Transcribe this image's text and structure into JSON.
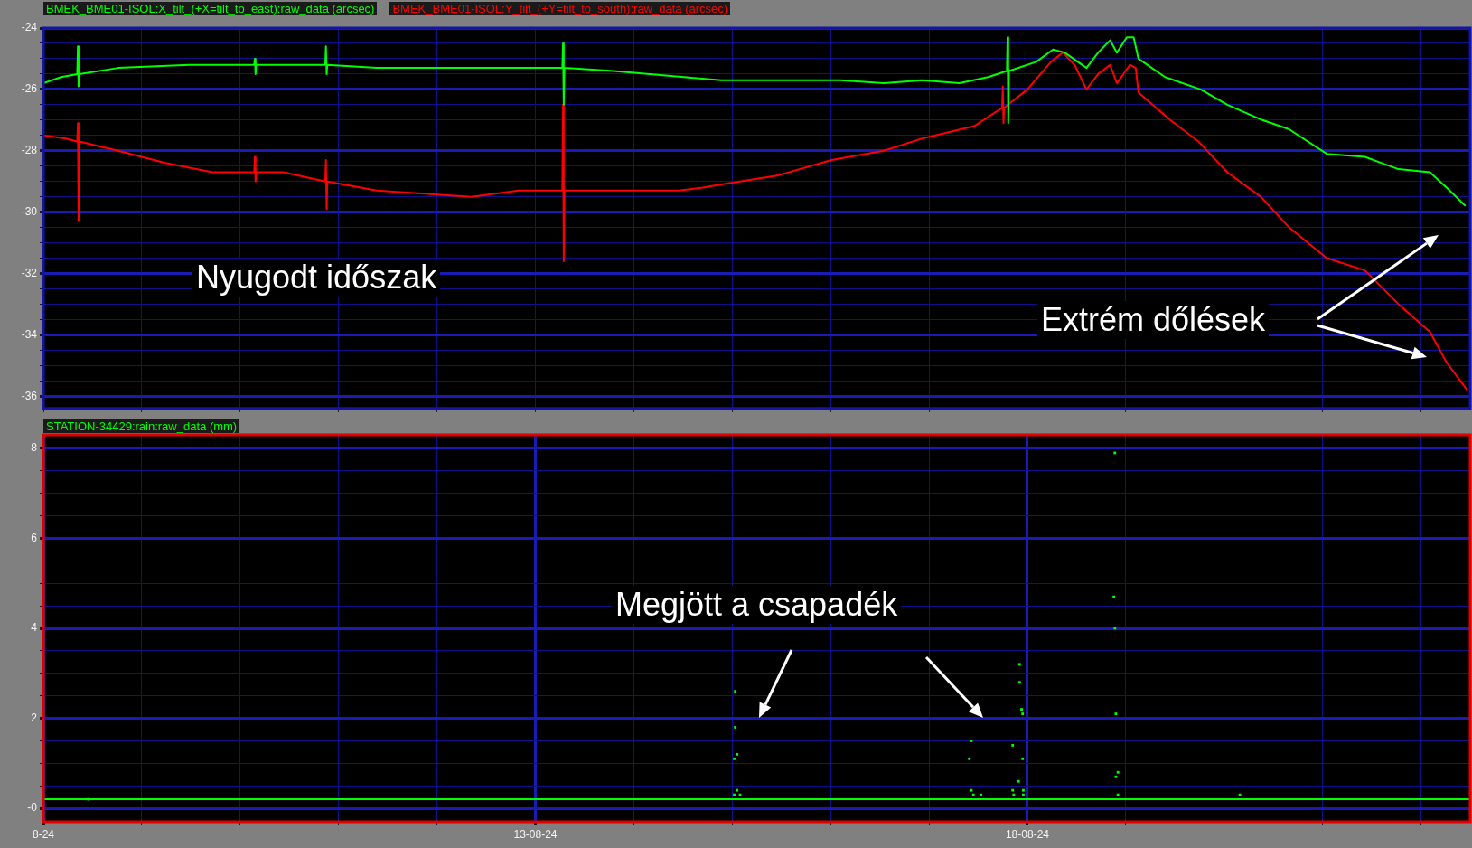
{
  "chart_data": [
    {
      "type": "line",
      "legend": "top left",
      "marker": "none",
      "line_style": "solid",
      "grid": true,
      "tick_labels": "y",
      "series": [
        {
          "name": "BMEK_BME01-ISOL:X_tilt_(+X=tilt_to_east):raw_data (arcsec)",
          "color": "#00ff00",
          "x": [
            "--08-08T00:00",
            "--08-08T04:20",
            "--08-08T08:15",
            "--08-08T08:25",
            "--08-08T08:35",
            "--08-08T08:45",
            "--08-08T18:15",
            "--08-09T11:30",
            "--08-10T03:25",
            "--08-10T03:35",
            "--08-10T03:45",
            "--08-10T03:55",
            "--08-10T20:45",
            "--08-10T20:55",
            "--08-10T21:05",
            "--08-10T21:15",
            "--08-11T09:20",
            "--08-12T08:25",
            "--08-13T06:35",
            "--08-13T06:45",
            "--08-13T06:55",
            "--08-13T07:05",
            "--08-13T19:00",
            "--08-14T12:15",
            "--08-14T21:20",
            "--08-15T11:15",
            "--08-16T02:25",
            "--08-16T13:00",
            "--08-16T22:20",
            "--08-17T07:25",
            "--08-17T14:25",
            "--08-17T19:00",
            "--08-17T19:10",
            "--08-17T19:20",
            "--08-17T19:30",
            "--08-18T02:10",
            "--08-18T06:15",
            "--08-18T09:05",
            "--08-18T14:25",
            "--08-18T17:15",
            "--08-18T20:10",
            "--08-18T21:50",
            "--08-19T00:15",
            "--08-19T01:55",
            "--08-19T03:05",
            "--08-19T09:35",
            "--08-19T18:15",
            "--08-20T00:45",
            "--08-20T09:20",
            "--08-20T15:50",
            "--08-21T01:00",
            "--08-21T10:20",
            "--08-21T18:30",
            "--08-22T02:10",
            "--08-22T06:15",
            "--08-22T10:50"
          ],
          "values": [
            -25.8,
            -25.6,
            -25.5,
            -24.6,
            -25.9,
            -25.5,
            -25.3,
            -25.2,
            -25.2,
            -25.0,
            -25.5,
            -25.2,
            -25.2,
            -24.6,
            -25.5,
            -25.2,
            -25.3,
            -25.3,
            -25.3,
            -24.5,
            -26.5,
            -25.3,
            -25.4,
            -25.6,
            -25.7,
            -25.7,
            -25.7,
            -25.8,
            -25.7,
            -25.8,
            -25.6,
            -25.4,
            -24.3,
            -27.1,
            -25.4,
            -25.1,
            -24.7,
            -24.8,
            -25.3,
            -24.8,
            -24.4,
            -24.8,
            -24.3,
            -24.3,
            -25.0,
            -25.6,
            -26.0,
            -26.5,
            -27.0,
            -27.3,
            -28.1,
            -28.2,
            -28.6,
            -28.7,
            -29.2,
            -29.8
          ]
        },
        {
          "name": "BMEK_BME01-ISOL:Y_tilt_(+Y=tilt_to_south):raw_data (arcsec)",
          "color": "#ff0000",
          "x": [
            "--08-08T00:00",
            "--08-08T05:30",
            "--08-08T08:15",
            "--08-08T08:25",
            "--08-08T08:35",
            "--08-08T08:45",
            "--08-08T18:15",
            "--08-09T05:45",
            "--08-09T17:15",
            "--08-10T03:25",
            "--08-10T03:35",
            "--08-10T03:45",
            "--08-10T03:55",
            "--08-10T10:35",
            "--08-10T20:45",
            "--08-10T20:55",
            "--08-10T21:05",
            "--08-10T21:15",
            "--08-11T09:20",
            "--08-11T20:55",
            "--08-12T08:25",
            "--08-12T19:55",
            "--08-13T06:35",
            "--08-13T06:45",
            "--08-13T06:55",
            "--08-13T07:05",
            "--08-13T19:00",
            "--08-14T11:00",
            "--08-14T16:50",
            "--08-14T21:20",
            "--08-15T11:15",
            "--08-16T00:15",
            "--08-16T13:00",
            "--08-16T22:20",
            "--08-17T11:00",
            "--08-17T17:50",
            "--08-17T18:00",
            "--08-17T18:10",
            "--08-17T18:20",
            "--08-18T00:00",
            "--08-18T05:45",
            "--08-18T08:40",
            "--08-18T11:30",
            "--08-18T14:25",
            "--08-18T17:15",
            "--08-18T20:10",
            "--08-18T21:50",
            "--08-19T01:00",
            "--08-19T02:25",
            "--08-19T03:05",
            "--08-19T10:50",
            "--08-19T17:45",
            "--08-20T00:45",
            "--08-20T08:55",
            "--08-20T15:50",
            "--08-21T01:00",
            "--08-21T10:20",
            "--08-21T18:30",
            "--08-22T02:10",
            "--08-22T06:15",
            "--08-22T11:15"
          ],
          "values": [
            -27.5,
            -27.6,
            -27.7,
            -27.1,
            -30.3,
            -27.7,
            -28.0,
            -28.4,
            -28.7,
            -28.7,
            -28.2,
            -29.0,
            -28.7,
            -28.7,
            -29.0,
            -28.3,
            -29.9,
            -29.0,
            -29.3,
            -29.4,
            -29.5,
            -29.3,
            -29.3,
            -26.5,
            -31.6,
            -29.3,
            -29.3,
            -29.3,
            -29.2,
            -29.1,
            -28.8,
            -28.3,
            -28.0,
            -27.6,
            -27.2,
            -26.6,
            -25.9,
            -27.1,
            -26.6,
            -26.0,
            -25.1,
            -24.8,
            -25.2,
            -26.0,
            -25.5,
            -25.2,
            -25.8,
            -25.2,
            -25.3,
            -26.1,
            -27.0,
            -27.7,
            -28.7,
            -29.5,
            -30.5,
            -31.5,
            -31.9,
            -33.0,
            -33.9,
            -34.9,
            -35.8
          ]
        }
      ],
      "xlim": [
        "--08-08",
        "--08-22T12:00"
      ],
      "xticks": [
        "--08-08",
        "--08-09",
        "--08-10",
        "--08-11",
        "--08-12",
        "--08-13",
        "--08-14",
        "--08-15",
        "--08-16",
        "--08-17",
        "--08-18",
        "--08-19",
        "--08-20",
        "--08-21",
        "--08-22"
      ],
      "ylim": [
        -36.4,
        -24
      ],
      "yticks": [
        -36,
        {
          "value": -35.5,
          "label": null
        },
        {
          "value": -35,
          "label": null
        },
        {
          "value": -34.5,
          "label": null
        },
        -34,
        {
          "value": -33.5,
          "label": null
        },
        {
          "value": -33,
          "label": null
        },
        {
          "value": -32.5,
          "label": null
        },
        -32,
        {
          "value": -31.5,
          "label": null
        },
        {
          "value": -31,
          "label": null
        },
        {
          "value": -30.5,
          "label": null
        },
        -30,
        {
          "value": -29.5,
          "label": null
        },
        {
          "value": -29,
          "label": null
        },
        {
          "value": -28.5,
          "label": null
        },
        -28,
        {
          "value": -27.5,
          "label": null
        },
        {
          "value": -27,
          "label": null
        },
        {
          "value": -26.5,
          "label": null
        },
        -26,
        {
          "value": -25.5,
          "label": null
        },
        {
          "value": -25,
          "label": null
        },
        {
          "value": -24.5,
          "label": null
        },
        -24
      ],
      "annotations": [
        "Nyugodt időszak",
        "Extrém dőlések"
      ]
    },
    {
      "type": "scatter",
      "legend": "top left",
      "marker": "square",
      "grid": true,
      "series": [
        {
          "name": "STATION-34429:rain:raw_data (mm)",
          "color": "#00ff00",
          "x": [
            "--08-08T11:00",
            "--08-15T00:45",
            "--08-15T00:45",
            "--08-15T01:10",
            "--08-15T00:30",
            "--08-15T01:10",
            "--08-15T00:30",
            "--08-15T01:55",
            "--08-17T10:20",
            "--08-17T09:50",
            "--08-17T10:20",
            "--08-17T10:50",
            "--08-17T12:40",
            "--08-17T22:05",
            "--08-17T22:05",
            "--08-17T22:35",
            "--08-17T22:50",
            "--08-17T20:25",
            "--08-17T22:50",
            "--08-17T21:50",
            "--08-17T20:25",
            "--08-17T23:00",
            "--08-17T20:40",
            "--08-17T23:00",
            "--08-18T21:20",
            "--08-18T21:05",
            "--08-18T21:20",
            "--08-18T21:35",
            "--08-18T22:05",
            "--08-18T21:35",
            "--08-18T22:05",
            "--08-20T03:50"
          ],
          "values": [
            0.2,
            2.6,
            1.8,
            1.2,
            1.1,
            0.4,
            0.3,
            0.3,
            1.5,
            1.1,
            0.4,
            0.3,
            0.3,
            3.2,
            2.8,
            2.2,
            2.1,
            1.4,
            1.1,
            0.6,
            0.4,
            0.4,
            0.3,
            0.3,
            7.9,
            4.7,
            4.0,
            2.1,
            0.8,
            0.7,
            0.3,
            0.3
          ]
        },
        {
          "type": "line",
          "marker": "none",
          "color": "#00ff00",
          "x": [
            "--08-08",
            "--08-22T12:00"
          ],
          "values": [
            0.2,
            0.2
          ]
        }
      ],
      "xlim": [
        "--08-08",
        "--08-22T12:00"
      ],
      "xticks": [
        {
          "value": "--08-08",
          "label": "8-24"
        },
        {
          "value": "--08-09",
          "label": null
        },
        {
          "value": "--08-10",
          "label": null
        },
        {
          "value": "--08-11",
          "label": null
        },
        {
          "value": "--08-12",
          "label": null
        },
        {
          "value": "--08-13",
          "label": "13-08-24"
        },
        {
          "value": "--08-14",
          "label": null
        },
        {
          "value": "--08-15",
          "label": null
        },
        {
          "value": "--08-16",
          "label": null
        },
        {
          "value": "--08-17",
          "label": null
        },
        {
          "value": "--08-18",
          "label": "18-08-24"
        },
        {
          "value": "--08-19",
          "label": null
        },
        {
          "value": "--08-20",
          "label": null
        },
        {
          "value": "--08-21",
          "label": null
        },
        {
          "value": "--08-22",
          "label": null
        }
      ],
      "ylim": [
        -0.3,
        8.3
      ],
      "yticks": [
        {
          "value": 0,
          "label": "-0"
        },
        {
          "value": 0.5,
          "label": null
        },
        {
          "value": 1,
          "label": null
        },
        {
          "value": 1.5,
          "label": null
        },
        2,
        {
          "value": 2.5,
          "label": null
        },
        {
          "value": 3,
          "label": null
        },
        {
          "value": 3.5,
          "label": null
        },
        4,
        {
          "value": 4.5,
          "label": null
        },
        {
          "value": 5,
          "label": null
        },
        {
          "value": 5.5,
          "label": null
        },
        6,
        {
          "value": 6.5,
          "label": null
        },
        {
          "value": 7,
          "label": null
        },
        {
          "value": 7.5,
          "label": null
        },
        8
      ],
      "annotations": [
        "Megjött a csapadék"
      ]
    }
  ]
}
